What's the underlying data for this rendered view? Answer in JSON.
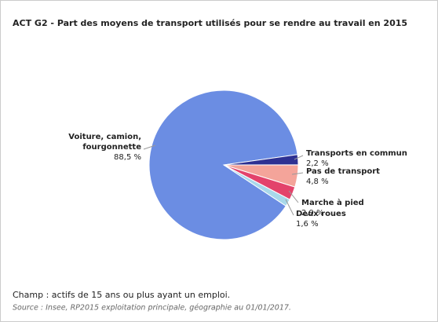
{
  "chart_data": {
    "type": "pie",
    "title": "ACT G2 - Part des moyens de transport utilisés pour se rendre au travail en 2015",
    "categories": [
      "Voiture, camion, fourgonnette",
      "Transports en commun",
      "Pas de transport",
      "Marche à pied",
      "Deux roues"
    ],
    "values": [
      88.5,
      2.2,
      4.8,
      2.9,
      1.6
    ],
    "value_labels": [
      "88,5 %",
      "2,2 %",
      "4,8 %",
      "2,9 %",
      "1,6 %"
    ],
    "colors": [
      "#6b8de3",
      "#2e3192",
      "#f4a49a",
      "#e3436b",
      "#a8d8ea"
    ],
    "note": "Champ : actifs de 15 ans ou plus ayant un emploi.",
    "source": "Source : Insee, RP2015 exploitation principale, géographie au 01/01/2017."
  }
}
